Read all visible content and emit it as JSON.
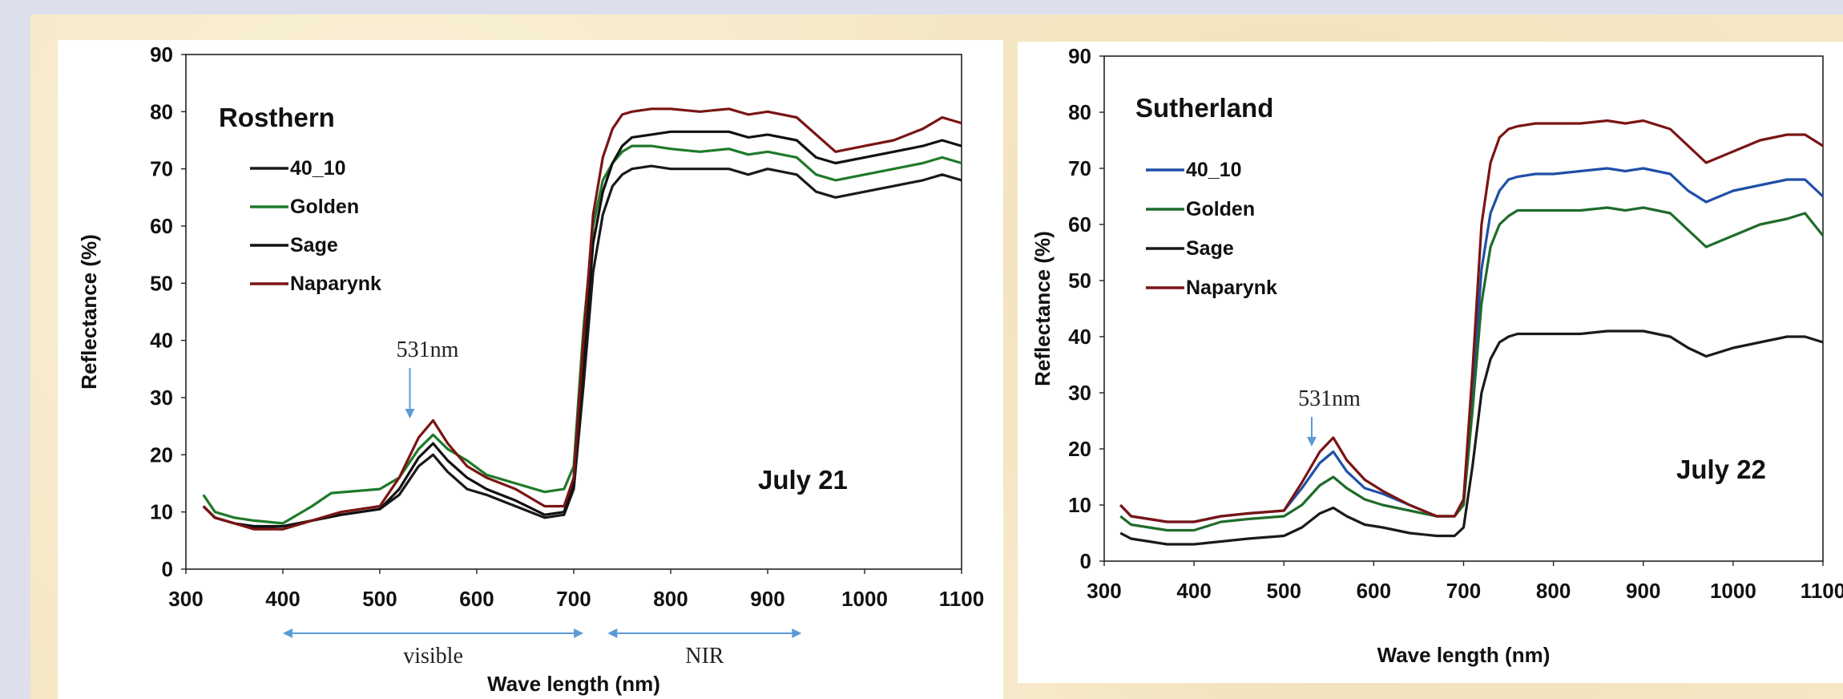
{
  "chart_data": [
    {
      "type": "line",
      "title": "Rosthern",
      "date_label": "July 21",
      "xlabel": "Wave length (nm)",
      "ylabel": "Reflectance (%)",
      "xlim": [
        300,
        1100
      ],
      "ylim": [
        0,
        90
      ],
      "xticks": [
        300,
        400,
        500,
        600,
        700,
        800,
        900,
        1000,
        1100
      ],
      "yticks": [
        0,
        10,
        20,
        30,
        40,
        50,
        60,
        70,
        80,
        90
      ],
      "grid": false,
      "legend_position": "upper-left",
      "annotations": [
        {
          "text": "531nm",
          "x": 531,
          "y": 27
        },
        {
          "text": "visible",
          "x_range": [
            400,
            710
          ]
        },
        {
          "text": "NIR",
          "x_range": [
            735,
            935
          ]
        }
      ],
      "series": [
        {
          "name": "40_10",
          "color": "#1a1a1a",
          "x": [
            318,
            330,
            350,
            370,
            400,
            430,
            460,
            500,
            520,
            540,
            555,
            570,
            590,
            610,
            640,
            670,
            690,
            700,
            710,
            720,
            730,
            740,
            750,
            760,
            780,
            800,
            830,
            860,
            880,
            900,
            930,
            950,
            970,
            1000,
            1030,
            1060,
            1080,
            1100
          ],
          "y": [
            11,
            9,
            8,
            7.2,
            7,
            8.5,
            9.5,
            10.5,
            13,
            18,
            20,
            17,
            14,
            13,
            11,
            9,
            9.5,
            14,
            32,
            52,
            62,
            67,
            69,
            70,
            70.5,
            70,
            70,
            70,
            69,
            70,
            69,
            66,
            65,
            66,
            67,
            68,
            69,
            68
          ]
        },
        {
          "name": "Golden",
          "color": "#1f7a2a",
          "x": [
            318,
            330,
            350,
            370,
            400,
            430,
            450,
            500,
            520,
            540,
            555,
            570,
            590,
            610,
            640,
            670,
            690,
            700,
            710,
            720,
            730,
            740,
            750,
            760,
            780,
            800,
            830,
            860,
            880,
            900,
            930,
            950,
            970,
            1000,
            1030,
            1060,
            1080,
            1100
          ],
          "y": [
            13,
            10,
            9,
            8.5,
            8,
            11,
            13.3,
            14,
            16,
            21,
            23.5,
            21,
            19,
            16.5,
            15,
            13.5,
            14,
            18,
            42,
            60,
            68,
            71,
            73,
            74,
            74,
            73.5,
            73,
            73.5,
            72.5,
            73,
            72,
            69,
            68,
            69,
            70,
            71,
            72,
            71
          ]
        },
        {
          "name": "Sage",
          "color": "#111111",
          "x": [
            318,
            330,
            350,
            370,
            400,
            430,
            460,
            500,
            520,
            540,
            555,
            570,
            590,
            610,
            640,
            670,
            690,
            700,
            710,
            720,
            730,
            740,
            750,
            760,
            780,
            800,
            830,
            860,
            880,
            900,
            930,
            950,
            970,
            1000,
            1030,
            1060,
            1080,
            1100
          ],
          "y": [
            11,
            9,
            8,
            7.5,
            7.5,
            8.5,
            9.5,
            10.5,
            14,
            19.5,
            22,
            19,
            16,
            14,
            12,
            9.5,
            10,
            15,
            36,
            57,
            66,
            71,
            74,
            75.5,
            76,
            76.5,
            76.5,
            76.5,
            75.5,
            76,
            75,
            72,
            71,
            72,
            73,
            74,
            75,
            74
          ]
        },
        {
          "name": "Naparynk",
          "color": "#7a1414",
          "x": [
            318,
            330,
            350,
            370,
            400,
            430,
            460,
            500,
            520,
            540,
            555,
            570,
            590,
            610,
            640,
            670,
            690,
            700,
            710,
            720,
            730,
            740,
            750,
            760,
            780,
            800,
            830,
            860,
            880,
            900,
            930,
            950,
            970,
            1000,
            1030,
            1060,
            1080,
            1100
          ],
          "y": [
            11,
            9,
            8,
            7,
            7,
            8.5,
            10,
            11,
            16,
            23,
            26,
            22,
            18,
            16,
            14,
            11,
            11,
            16,
            40,
            62,
            72,
            77,
            79.5,
            80,
            80.5,
            80.5,
            80,
            80.5,
            79.5,
            80,
            79,
            76,
            73,
            74,
            75,
            77,
            79,
            78
          ]
        }
      ]
    },
    {
      "type": "line",
      "title": "Sutherland",
      "date_label": "July 22",
      "xlabel": "Wave length (nm)",
      "ylabel": "Reflectance (%)",
      "xlim": [
        300,
        1100
      ],
      "ylim": [
        0,
        90
      ],
      "xticks": [
        300,
        400,
        500,
        600,
        700,
        800,
        900,
        1000,
        1100
      ],
      "yticks": [
        0,
        10,
        20,
        30,
        40,
        50,
        60,
        70,
        80,
        90
      ],
      "grid": false,
      "legend_position": "upper-left",
      "annotations": [
        {
          "text": "531nm",
          "x": 531,
          "y": 22
        }
      ],
      "series": [
        {
          "name": "40_10",
          "color": "#1f4fa8",
          "x": [
            318,
            330,
            350,
            370,
            400,
            430,
            460,
            500,
            520,
            540,
            555,
            570,
            590,
            610,
            640,
            670,
            690,
            700,
            710,
            720,
            730,
            740,
            750,
            760,
            780,
            800,
            830,
            860,
            880,
            900,
            930,
            950,
            970,
            1000,
            1030,
            1060,
            1080,
            1100
          ],
          "y": [
            10,
            8,
            7.5,
            7,
            7,
            8,
            8.5,
            9,
            13,
            17.5,
            19.5,
            16,
            13,
            12,
            10,
            8,
            8,
            11,
            30,
            52,
            62,
            66,
            68,
            68.5,
            69,
            69,
            69.5,
            70,
            69.5,
            70,
            69,
            66,
            64,
            66,
            67,
            68,
            68,
            65
          ]
        },
        {
          "name": "Golden",
          "color": "#1f6b2a",
          "x": [
            318,
            330,
            350,
            370,
            400,
            430,
            460,
            500,
            520,
            540,
            555,
            570,
            590,
            610,
            640,
            670,
            690,
            700,
            710,
            720,
            730,
            740,
            750,
            760,
            780,
            800,
            830,
            860,
            880,
            900,
            930,
            950,
            970,
            1000,
            1030,
            1060,
            1080,
            1100
          ],
          "y": [
            8,
            6.5,
            6,
            5.5,
            5.5,
            7,
            7.5,
            8,
            10,
            13.5,
            15,
            13,
            11,
            10,
            9,
            8,
            8,
            10,
            27,
            46,
            56,
            60,
            61.5,
            62.5,
            62.5,
            62.5,
            62.5,
            63,
            62.5,
            63,
            62,
            59,
            56,
            58,
            60,
            61,
            62,
            58
          ]
        },
        {
          "name": "Sage",
          "color": "#1a1a1a",
          "x": [
            318,
            330,
            350,
            370,
            400,
            430,
            460,
            500,
            520,
            540,
            555,
            570,
            590,
            610,
            640,
            670,
            690,
            700,
            710,
            720,
            730,
            740,
            750,
            760,
            780,
            800,
            830,
            860,
            880,
            900,
            930,
            950,
            970,
            1000,
            1030,
            1060,
            1080,
            1100
          ],
          "y": [
            5,
            4,
            3.5,
            3,
            3,
            3.5,
            4,
            4.5,
            6,
            8.5,
            9.5,
            8,
            6.5,
            6,
            5,
            4.5,
            4.5,
            6,
            17,
            30,
            36,
            39,
            40,
            40.5,
            40.5,
            40.5,
            40.5,
            41,
            41,
            41,
            40,
            38,
            36.5,
            38,
            39,
            40,
            40,
            39
          ]
        },
        {
          "name": "Naparynk",
          "color": "#7a1414",
          "x": [
            318,
            330,
            350,
            370,
            400,
            430,
            460,
            500,
            520,
            540,
            555,
            570,
            590,
            610,
            640,
            670,
            690,
            700,
            710,
            720,
            730,
            740,
            750,
            760,
            780,
            800,
            830,
            860,
            880,
            900,
            930,
            950,
            970,
            1000,
            1030,
            1060,
            1080,
            1100
          ],
          "y": [
            10,
            8,
            7.5,
            7,
            7,
            8,
            8.5,
            9,
            14,
            19.5,
            22,
            18,
            14.5,
            12.5,
            10,
            8,
            8,
            11,
            34,
            60,
            71,
            75.5,
            77,
            77.5,
            78,
            78,
            78,
            78.5,
            78,
            78.5,
            77,
            74,
            71,
            73,
            75,
            76,
            76,
            74
          ]
        }
      ]
    }
  ]
}
